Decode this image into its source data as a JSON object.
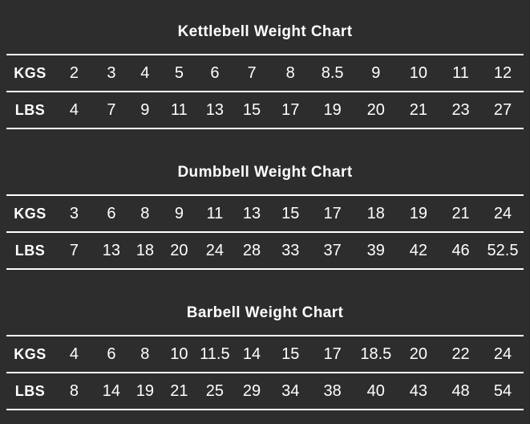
{
  "page": {
    "background_color": "#2d2d2d",
    "text_color": "#ffffff",
    "line_color": "#ffffff"
  },
  "sections": [
    {
      "title": "Kettlebell Weight Chart",
      "row_labels": [
        "KGS",
        "LBS"
      ],
      "kgs": [
        "2",
        "3",
        "4",
        "5",
        "6",
        "7",
        "8",
        "8.5",
        "9",
        "10",
        "11",
        "12"
      ],
      "lbs": [
        "4",
        "7",
        "9",
        "11",
        "13",
        "15",
        "17",
        "19",
        "20",
        "21",
        "23",
        "27"
      ]
    },
    {
      "title": "Dumbbell Weight Chart",
      "row_labels": [
        "KGS",
        "LBS"
      ],
      "kgs": [
        "3",
        "6",
        "8",
        "9",
        "11",
        "13",
        "15",
        "17",
        "18",
        "19",
        "21",
        "24"
      ],
      "lbs": [
        "7",
        "13",
        "18",
        "20",
        "24",
        "28",
        "33",
        "37",
        "39",
        "42",
        "46",
        "52.5"
      ]
    },
    {
      "title": "Barbell Weight Chart",
      "row_labels": [
        "KGS",
        "LBS"
      ],
      "kgs": [
        "4",
        "6",
        "8",
        "10",
        "11.5",
        "14",
        "15",
        "17",
        "18.5",
        "20",
        "22",
        "24"
      ],
      "lbs": [
        "8",
        "14",
        "19",
        "21",
        "25",
        "29",
        "34",
        "38",
        "40",
        "43",
        "48",
        "54"
      ]
    }
  ],
  "chart_data": [
    {
      "type": "table",
      "title": "Kettlebell Weight Chart",
      "row_labels": [
        "KGS",
        "LBS"
      ],
      "series": [
        {
          "name": "KGS",
          "values": [
            2,
            3,
            4,
            5,
            6,
            7,
            8,
            8.5,
            9,
            10,
            11,
            12
          ]
        },
        {
          "name": "LBS",
          "values": [
            4,
            7,
            9,
            11,
            13,
            15,
            17,
            19,
            20,
            21,
            23,
            27
          ]
        }
      ]
    },
    {
      "type": "table",
      "title": "Dumbbell Weight Chart",
      "row_labels": [
        "KGS",
        "LBS"
      ],
      "series": [
        {
          "name": "KGS",
          "values": [
            3,
            6,
            8,
            9,
            11,
            13,
            15,
            17,
            18,
            19,
            21,
            24
          ]
        },
        {
          "name": "LBS",
          "values": [
            7,
            13,
            18,
            20,
            24,
            28,
            33,
            37,
            39,
            42,
            46,
            52.5
          ]
        }
      ]
    },
    {
      "type": "table",
      "title": "Barbell Weight Chart",
      "row_labels": [
        "KGS",
        "LBS"
      ],
      "series": [
        {
          "name": "KGS",
          "values": [
            4,
            6,
            8,
            10,
            11.5,
            14,
            15,
            17,
            18.5,
            20,
            22,
            24
          ]
        },
        {
          "name": "LBS",
          "values": [
            8,
            14,
            19,
            21,
            25,
            29,
            34,
            38,
            40,
            43,
            48,
            54
          ]
        }
      ]
    }
  ]
}
